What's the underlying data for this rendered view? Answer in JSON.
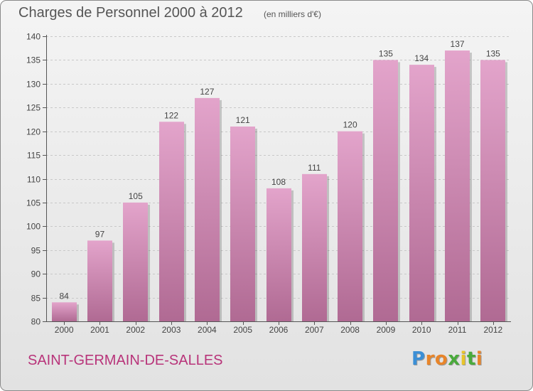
{
  "chart_data": {
    "type": "bar",
    "title": "Charges de Personnel 2000 à 2012",
    "subtitle": "(en milliers d'€)",
    "categories": [
      "2000",
      "2001",
      "2002",
      "2003",
      "2004",
      "2005",
      "2006",
      "2007",
      "2008",
      "2009",
      "2010",
      "2011",
      "2012"
    ],
    "values": [
      84,
      97,
      105,
      122,
      127,
      121,
      108,
      111,
      120,
      135,
      134,
      137,
      135
    ],
    "ylim": [
      80,
      140
    ],
    "yticks": [
      80,
      85,
      90,
      95,
      100,
      105,
      110,
      115,
      120,
      125,
      130,
      135,
      140
    ],
    "xlabel": "",
    "ylabel": "",
    "grid": true,
    "bar_color_top": "#e3a4cb",
    "bar_color_bottom": "#b06a93"
  },
  "footer": {
    "commune": "SAINT-GERMAIN-DE-SALLES",
    "commune_color": "#b8347a",
    "logo_letters": [
      {
        "char": "P",
        "color": "#3b8fd6"
      },
      {
        "char": "r",
        "color": "#e8852a"
      },
      {
        "char": "o",
        "color": "#e8852a"
      },
      {
        "char": "x",
        "color": "#4aaa3c"
      },
      {
        "char": "i",
        "color": "#e8c42a"
      },
      {
        "char": "t",
        "color": "#4aaa3c"
      },
      {
        "char": "i",
        "color": "#e8852a"
      }
    ]
  }
}
